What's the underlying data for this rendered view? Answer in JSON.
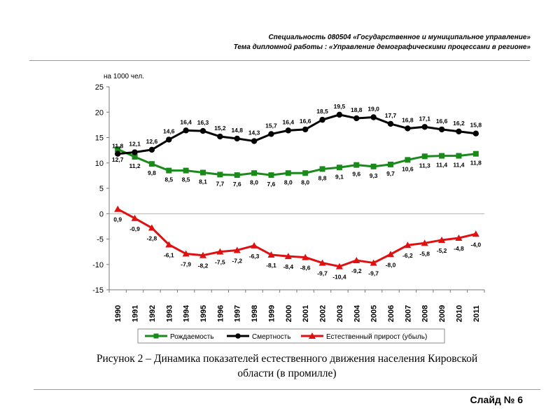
{
  "header": {
    "line1": "Специальность 080504 «Государственное и муниципальное управление»",
    "line2": "Тема дипломной работы : «Управление демографическими процессами в регионе»"
  },
  "chart_data": {
    "type": "line",
    "ylabel": "на 1000 чел.",
    "ylim": [
      -15,
      25
    ],
    "yticks": [
      -15,
      -10,
      -5,
      0,
      5,
      10,
      15,
      20,
      25
    ],
    "categories": [
      "1990",
      "1991",
      "1992",
      "1993",
      "1994",
      "1995",
      "1996",
      "1997",
      "1998",
      "1999",
      "2000",
      "2001",
      "2002",
      "2003",
      "2004",
      "2005",
      "2006",
      "2007",
      "2008",
      "2009",
      "2010",
      "2011"
    ],
    "series": [
      {
        "name": "Рождаемость",
        "color": "#1a8a1a",
        "marker": "square",
        "values": [
          12.7,
          11.2,
          9.8,
          8.5,
          8.5,
          8.1,
          7.7,
          7.6,
          8.0,
          7.6,
          8.0,
          8.0,
          8.8,
          9.1,
          9.6,
          9.3,
          9.7,
          10.6,
          11.3,
          11.4,
          11.4,
          11.8
        ],
        "labels": [
          "12,7",
          "11,2",
          "9,8",
          "8,5",
          "8,5",
          "8,1",
          "7,7",
          "7,6",
          "8,0",
          "7,6",
          "8,0",
          "8,0",
          "8,8",
          "9,1",
          "9,6",
          "9,3",
          "9,7",
          "10,6",
          "11,3",
          "11,4",
          "11,4",
          "11,8"
        ]
      },
      {
        "name": "Смертность",
        "color": "#000000",
        "marker": "circle",
        "values": [
          11.8,
          12.1,
          12.6,
          14.6,
          16.4,
          16.3,
          15.2,
          14.8,
          14.3,
          15.7,
          16.4,
          16.6,
          18.5,
          19.5,
          18.8,
          19.0,
          17.7,
          16.8,
          17.1,
          16.6,
          16.2,
          15.8
        ],
        "labels": [
          "11,8",
          "12,1",
          "12,6",
          "14,6",
          "16,4",
          "16,3",
          "15,2",
          "14,8",
          "14,3",
          "15,7",
          "16,4",
          "16,6",
          "18,5",
          "19,5",
          "18,8",
          "19,0",
          "17,7",
          "16,8",
          "17,1",
          "16,6",
          "16,2",
          "15,8"
        ]
      },
      {
        "name": "Естественный прирост (убыль)",
        "color": "#e01010",
        "marker": "triangle",
        "values": [
          0.9,
          -0.9,
          -2.8,
          -6.1,
          -7.9,
          -8.2,
          -7.5,
          -7.2,
          -6.3,
          -8.1,
          -8.4,
          -8.6,
          -9.7,
          -10.4,
          -9.2,
          -9.7,
          -8.0,
          -6.2,
          -5.8,
          -5.2,
          -4.8,
          -4.0
        ],
        "labels": [
          "0,9",
          "-0,9",
          "-2,8",
          "-6,1",
          "-7,9",
          "-8,2",
          "-7,5",
          "-7,2",
          "-6,3",
          "-8,1",
          "-8,4",
          "-8,6",
          "-9,7",
          "-10,4",
          "-9,2",
          "-9,7",
          "-8,0",
          "-6,2",
          "-5,8",
          "-5,2",
          "-4,8",
          "-4,0"
        ]
      }
    ]
  },
  "caption": {
    "line1": "Рисунок 2 – Динамика показателей естественного движения населения Кировской",
    "line2": "области (в промилле)"
  },
  "footer": {
    "slide_label": "Слайд № 6"
  }
}
